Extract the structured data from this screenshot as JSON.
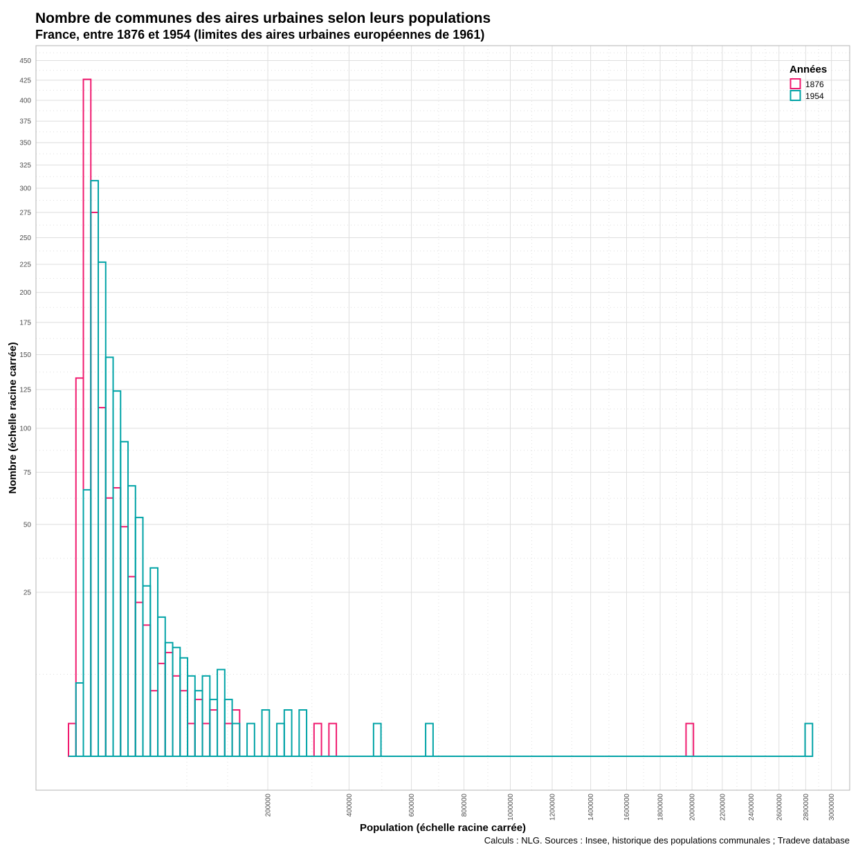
{
  "chart_data": {
    "type": "bar",
    "subtype": "histogram",
    "title": "Nombre de communes des aires urbaines selon leurs populations",
    "subtitle": "France, entre 1876 et 1954 (limites des aires urbaines européennes de 1961)",
    "xlabel": "Population (échelle racine carrée)",
    "ylabel": "Nombre (échelle racine carrée)",
    "caption": "Calculs : NLG. Sources : Insee, historique des populations communales ; Tradeve database",
    "x_scale": "sqrt",
    "y_scale": "sqrt",
    "xlim": [
      0,
      3000000
    ],
    "ylim": [
      0,
      450
    ],
    "x_ticks": [
      "200000",
      "400000",
      "600000",
      "800000",
      "1000000",
      "1200000",
      "1400000",
      "1600000",
      "1800000",
      "2000000",
      "2200000",
      "2400000",
      "2600000",
      "2800000",
      "3000000"
    ],
    "x_tick_values": [
      200000,
      400000,
      600000,
      800000,
      1000000,
      1200000,
      1400000,
      1600000,
      1800000,
      2000000,
      2200000,
      2400000,
      2600000,
      2800000,
      3000000
    ],
    "y_ticks": [
      "25",
      "50",
      "75",
      "100",
      "125",
      "150",
      "175",
      "200",
      "225",
      "250",
      "275",
      "300",
      "325",
      "350",
      "375",
      "400",
      "425",
      "450"
    ],
    "y_tick_values": [
      25,
      50,
      75,
      100,
      125,
      150,
      175,
      200,
      225,
      250,
      275,
      300,
      325,
      350,
      375,
      400,
      425,
      450
    ],
    "bins": {
      "sqrt_start": -7.1,
      "sqrt_width": 16.96,
      "count": 100
    },
    "grid": true,
    "legend": {
      "title": "Années",
      "position": "top-right"
    },
    "series": [
      {
        "name": "1876",
        "color": "#F0196E",
        "values": [
          1,
          133,
          426,
          275,
          113,
          62,
          67,
          49,
          30,
          22,
          16,
          4,
          8,
          10,
          6,
          4,
          1,
          3,
          1,
          2,
          0,
          1,
          2,
          0,
          0,
          0,
          0,
          0,
          0,
          0,
          0,
          0,
          0,
          1,
          0,
          1,
          0,
          0,
          0,
          0,
          0,
          0,
          0,
          0,
          0,
          0,
          0,
          0,
          0,
          0,
          0,
          0,
          0,
          0,
          0,
          0,
          0,
          0,
          0,
          0,
          0,
          0,
          0,
          0,
          0,
          0,
          0,
          0,
          0,
          0,
          0,
          0,
          0,
          0,
          0,
          0,
          0,
          0,
          0,
          0,
          0,
          0,
          0,
          1,
          0,
          0,
          0,
          0,
          0,
          0,
          0,
          0,
          0,
          0,
          0,
          0,
          0,
          0,
          0,
          0
        ]
      },
      {
        "name": "1954",
        "color": "#00A3A6",
        "values": [
          0,
          5,
          66,
          308,
          227,
          148,
          124,
          92,
          68,
          53,
          27,
          33,
          18,
          12,
          11,
          9,
          6,
          4,
          6,
          3,
          7,
          3,
          1,
          0,
          1,
          0,
          2,
          0,
          1,
          2,
          0,
          2,
          0,
          0,
          0,
          0,
          0,
          0,
          0,
          0,
          0,
          1,
          0,
          0,
          0,
          0,
          0,
          0,
          1,
          0,
          0,
          0,
          0,
          0,
          0,
          0,
          0,
          0,
          0,
          0,
          0,
          0,
          0,
          0,
          0,
          0,
          0,
          0,
          0,
          0,
          0,
          0,
          0,
          0,
          0,
          0,
          0,
          0,
          0,
          0,
          0,
          0,
          0,
          0,
          0,
          0,
          0,
          0,
          0,
          0,
          0,
          0,
          0,
          0,
          0,
          0,
          0,
          0,
          0,
          1
        ]
      }
    ]
  }
}
